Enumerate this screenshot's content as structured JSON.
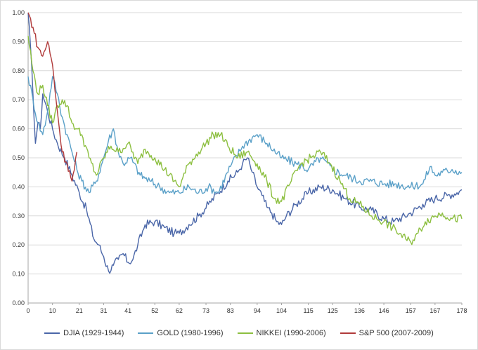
{
  "chart_data": {
    "type": "line",
    "title": "",
    "xlabel": "",
    "ylabel": "",
    "xlim": [
      0,
      178
    ],
    "ylim": [
      0,
      1
    ],
    "grid": true,
    "legend_position": "bottom",
    "x_ticks": [
      "0",
      "10",
      "21",
      "31",
      "41",
      "52",
      "62",
      "73",
      "83",
      "94",
      "104",
      "115",
      "125",
      "136",
      "146",
      "157",
      "167",
      "178"
    ],
    "y_ticks": [
      "0.00",
      "0.10",
      "0.20",
      "0.30",
      "0.40",
      "0.50",
      "0.60",
      "0.70",
      "0.80",
      "0.90",
      "1.00"
    ],
    "series": [
      {
        "name": "DJIA (1929-1944)",
        "color": "#4a66a8",
        "x": [
          0,
          1,
          2,
          3,
          4,
          5,
          6,
          8,
          10,
          12,
          15,
          18,
          21,
          24,
          27,
          29,
          31,
          33,
          35,
          37,
          39,
          41,
          43,
          45,
          48,
          52,
          56,
          60,
          62,
          66,
          70,
          74,
          78,
          82,
          86,
          88,
          90,
          92,
          94,
          96,
          98,
          100,
          102,
          104,
          106,
          110,
          115,
          120,
          125,
          130,
          136,
          141,
          146,
          150,
          157,
          162,
          167,
          172,
          176,
          178
        ],
        "values": [
          1.0,
          0.88,
          0.72,
          0.55,
          0.62,
          0.6,
          0.72,
          0.66,
          0.6,
          0.55,
          0.5,
          0.44,
          0.38,
          0.32,
          0.22,
          0.2,
          0.16,
          0.11,
          0.13,
          0.15,
          0.17,
          0.14,
          0.15,
          0.2,
          0.27,
          0.28,
          0.26,
          0.24,
          0.24,
          0.27,
          0.3,
          0.34,
          0.38,
          0.42,
          0.45,
          0.48,
          0.5,
          0.45,
          0.4,
          0.37,
          0.33,
          0.31,
          0.28,
          0.27,
          0.3,
          0.34,
          0.38,
          0.4,
          0.39,
          0.36,
          0.33,
          0.32,
          0.29,
          0.28,
          0.31,
          0.34,
          0.36,
          0.37,
          0.38,
          0.39
        ]
      },
      {
        "name": "GOLD (1980-1996)",
        "color": "#5aa0c8",
        "x": [
          0,
          2,
          4,
          6,
          8,
          10,
          12,
          14,
          16,
          18,
          20,
          22,
          25,
          28,
          31,
          33,
          35,
          37,
          39,
          42,
          46,
          50,
          54,
          58,
          62,
          66,
          70,
          74,
          78,
          83,
          88,
          92,
          94,
          98,
          104,
          110,
          115,
          120,
          125,
          130,
          136,
          141,
          146,
          151,
          157,
          162,
          165,
          167,
          170,
          174,
          178
        ],
        "values": [
          0.78,
          0.7,
          0.62,
          0.58,
          0.66,
          0.78,
          0.72,
          0.64,
          0.58,
          0.52,
          0.46,
          0.42,
          0.38,
          0.42,
          0.5,
          0.56,
          0.6,
          0.52,
          0.48,
          0.5,
          0.44,
          0.42,
          0.4,
          0.38,
          0.38,
          0.4,
          0.38,
          0.4,
          0.38,
          0.47,
          0.54,
          0.57,
          0.58,
          0.55,
          0.5,
          0.48,
          0.46,
          0.5,
          0.46,
          0.44,
          0.42,
          0.42,
          0.41,
          0.41,
          0.4,
          0.41,
          0.47,
          0.44,
          0.45,
          0.46,
          0.45
        ]
      },
      {
        "name": "NIKKEI (1990-2006)",
        "color": "#8cbf3f",
        "x": [
          0,
          2,
          4,
          6,
          8,
          10,
          12,
          14,
          16,
          18,
          20,
          22,
          25,
          28,
          31,
          34,
          37,
          41,
          45,
          48,
          52,
          56,
          60,
          62,
          66,
          70,
          73,
          76,
          79,
          82,
          86,
          90,
          94,
          98,
          101,
          104,
          108,
          112,
          116,
          120,
          124,
          128,
          132,
          136,
          141,
          146,
          151,
          155,
          157,
          160,
          163,
          167,
          170,
          174,
          178
        ],
        "values": [
          0.92,
          0.8,
          0.72,
          0.75,
          0.68,
          0.62,
          0.68,
          0.7,
          0.68,
          0.62,
          0.6,
          0.58,
          0.5,
          0.44,
          0.5,
          0.54,
          0.52,
          0.55,
          0.48,
          0.53,
          0.5,
          0.46,
          0.42,
          0.4,
          0.48,
          0.52,
          0.55,
          0.58,
          0.58,
          0.54,
          0.5,
          0.52,
          0.48,
          0.42,
          0.36,
          0.35,
          0.42,
          0.48,
          0.5,
          0.52,
          0.48,
          0.42,
          0.36,
          0.34,
          0.3,
          0.28,
          0.25,
          0.22,
          0.21,
          0.24,
          0.28,
          0.3,
          0.31,
          0.29,
          0.29
        ]
      },
      {
        "name": "S&P 500 (2007-2009)",
        "color": "#b03a3a",
        "x": [
          0,
          2,
          4,
          6,
          8,
          10,
          12,
          14,
          16,
          18,
          19,
          20
        ],
        "values": [
          1.0,
          0.95,
          0.88,
          0.85,
          0.9,
          0.82,
          0.66,
          0.52,
          0.48,
          0.42,
          0.46,
          0.52
        ]
      }
    ]
  }
}
